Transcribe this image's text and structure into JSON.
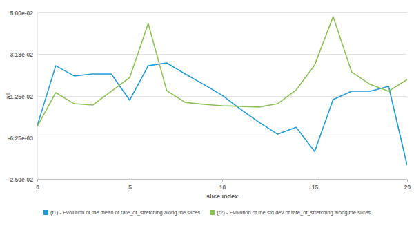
{
  "chart_data": {
    "type": "line",
    "x_label": "slice index",
    "y_label": "all",
    "x": [
      0,
      1,
      2,
      3,
      4,
      5,
      6,
      7,
      8,
      9,
      10,
      11,
      12,
      13,
      14,
      15,
      16,
      17,
      18,
      19,
      20
    ],
    "series": [
      {
        "name": "(f1) - Evolution of the mean of rate_of_stretching along the slices",
        "color": "#1f9bd7",
        "values": [
          -0.001,
          0.026,
          0.0214,
          0.0223,
          0.0223,
          0.0105,
          0.026,
          0.0273,
          0.0223,
          0.0176,
          0.0127,
          0.0064,
          0.0005,
          -0.0048,
          -0.0017,
          -0.0126,
          0.0108,
          0.0145,
          0.0145,
          0.0167,
          -0.0188
        ]
      },
      {
        "name": "(f2) - Evolution of the std dev of rate_of_stretching along the slices",
        "color": "#8dc153",
        "values": [
          -0.0013,
          0.0139,
          0.0089,
          0.0083,
          0.0145,
          0.0207,
          0.045,
          0.0148,
          0.0095,
          0.0086,
          0.008,
          0.0077,
          0.0074,
          0.0089,
          0.0151,
          0.0263,
          0.0481,
          0.0232,
          0.0176,
          0.0145,
          0.0198
        ]
      }
    ],
    "xlim": [
      0,
      20
    ],
    "xticks": [
      0,
      5,
      10,
      15,
      20
    ],
    "ylim": [
      -0.025,
      0.05
    ],
    "yticks": [
      {
        "value": -0.025,
        "label": "-2.50e-02"
      },
      {
        "value": -0.00625,
        "label": "-6.25e-03"
      },
      {
        "value": 0.0125,
        "label": "1.25e-02"
      },
      {
        "value": 0.03125,
        "label": "3.13e-02"
      },
      {
        "value": 0.05,
        "label": "5.00e-02"
      }
    ],
    "grid": true,
    "legend": "bottom",
    "marker": "none"
  }
}
